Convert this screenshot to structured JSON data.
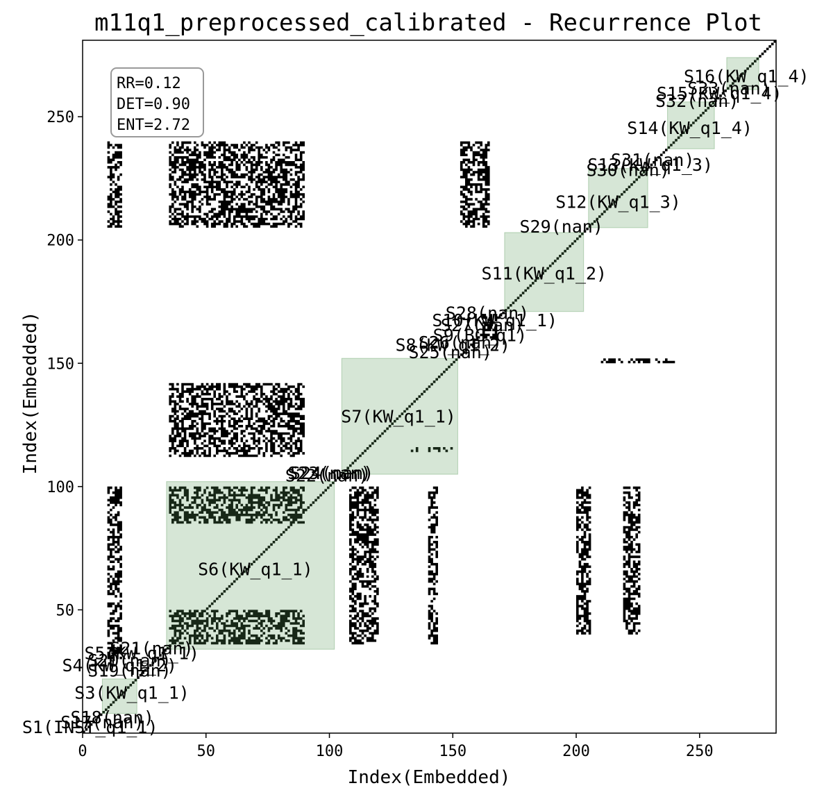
{
  "chart_data": {
    "type": "heatmap",
    "title": "m11q1_preprocessed_calibrated - Recurrence Plot",
    "xlabel": "Index(Embedded)",
    "ylabel": "Index(Embedded)",
    "xlim": [
      0,
      281
    ],
    "ylim": [
      0,
      281
    ],
    "xticks": [
      0,
      50,
      100,
      150,
      200,
      250
    ],
    "yticks": [
      50,
      100,
      150,
      200,
      250
    ],
    "grid": false,
    "colors": {
      "recurrence": "#000000",
      "segment_fill": "#5a9a5a",
      "segment_dark": "#283828"
    },
    "stats_box": {
      "placement": "top-left",
      "lines": [
        "RR=0.12",
        "DET=0.90",
        "ENT=2.72"
      ]
    },
    "segments": [
      {
        "label": "S3(KW_q1_1)",
        "start": 8,
        "end": 22,
        "label_x": 20,
        "label_y": 14
      },
      {
        "label": "S6(KW_q1_1)",
        "start": 34,
        "end": 102,
        "label_x": 70,
        "label_y": 64
      },
      {
        "label": "S7(KW_q1_1)",
        "start": 105,
        "end": 152,
        "label_x": 128,
        "label_y": 126
      },
      {
        "label": "S11(KW_q1_2)",
        "start": 171,
        "end": 203,
        "label_x": 187,
        "label_y": 184
      },
      {
        "label": "S12(KW_q1_3)",
        "start": 205,
        "end": 229,
        "label_x": 217,
        "label_y": 213
      },
      {
        "label": "S14(KW_q1_4)",
        "start": 237,
        "end": 256,
        "label_x": 246,
        "label_y": 243
      },
      {
        "label": "S16(KW_q1_4)",
        "start": 261,
        "end": 274,
        "label_x": 269,
        "label_y": 264
      }
    ],
    "labels": [
      {
        "text": "S1(INST_q1_1)",
        "x": 3,
        "y": 0
      },
      {
        "text": "S17(nan)",
        "x": 8,
        "y": 2
      },
      {
        "text": "S18(nan)",
        "x": 12,
        "y": 4
      },
      {
        "text": "S19(nan)",
        "x": 19,
        "y": 23
      },
      {
        "text": "S4(KW_q1_2)",
        "x": 15,
        "y": 25
      },
      {
        "text": "S20(nan)",
        "x": 19,
        "y": 27
      },
      {
        "text": "S5(KW_q1_1)",
        "x": 24,
        "y": 30
      },
      {
        "text": "S21(nan)",
        "x": 28,
        "y": 32
      },
      {
        "text": "S22(nan)",
        "x": 99,
        "y": 102
      },
      {
        "text": "S23(nan)",
        "x": 100,
        "y": 103
      },
      {
        "text": "S24(nan)",
        "x": 101,
        "y": 103
      },
      {
        "text": "S25(nan)",
        "x": 149,
        "y": 152
      },
      {
        "text": "S8(KW_q1_2)",
        "x": 150,
        "y": 155
      },
      {
        "text": "S26(nan)",
        "x": 153,
        "y": 156
      },
      {
        "text": "S9(BG_q1)",
        "x": 161,
        "y": 159
      },
      {
        "text": "S27(nan)",
        "x": 162,
        "y": 163
      },
      {
        "text": "S10(KW_q1_1)",
        "x": 167,
        "y": 165
      },
      {
        "text": "S28(nan)",
        "x": 164,
        "y": 168
      },
      {
        "text": "S29(nan)",
        "x": 194,
        "y": 203
      },
      {
        "text": "S13(KW_q1_3)",
        "x": 230,
        "y": 228
      },
      {
        "text": "S30(nan)",
        "x": 221,
        "y": 226
      },
      {
        "text": "S31(nan)",
        "x": 231,
        "y": 230
      },
      {
        "text": "S32(nan)",
        "x": 249,
        "y": 254
      },
      {
        "text": "S15(KW_q1_4)",
        "x": 258,
        "y": 257
      },
      {
        "text": "S33(nan)",
        "x": 262,
        "y": 259
      }
    ]
  }
}
